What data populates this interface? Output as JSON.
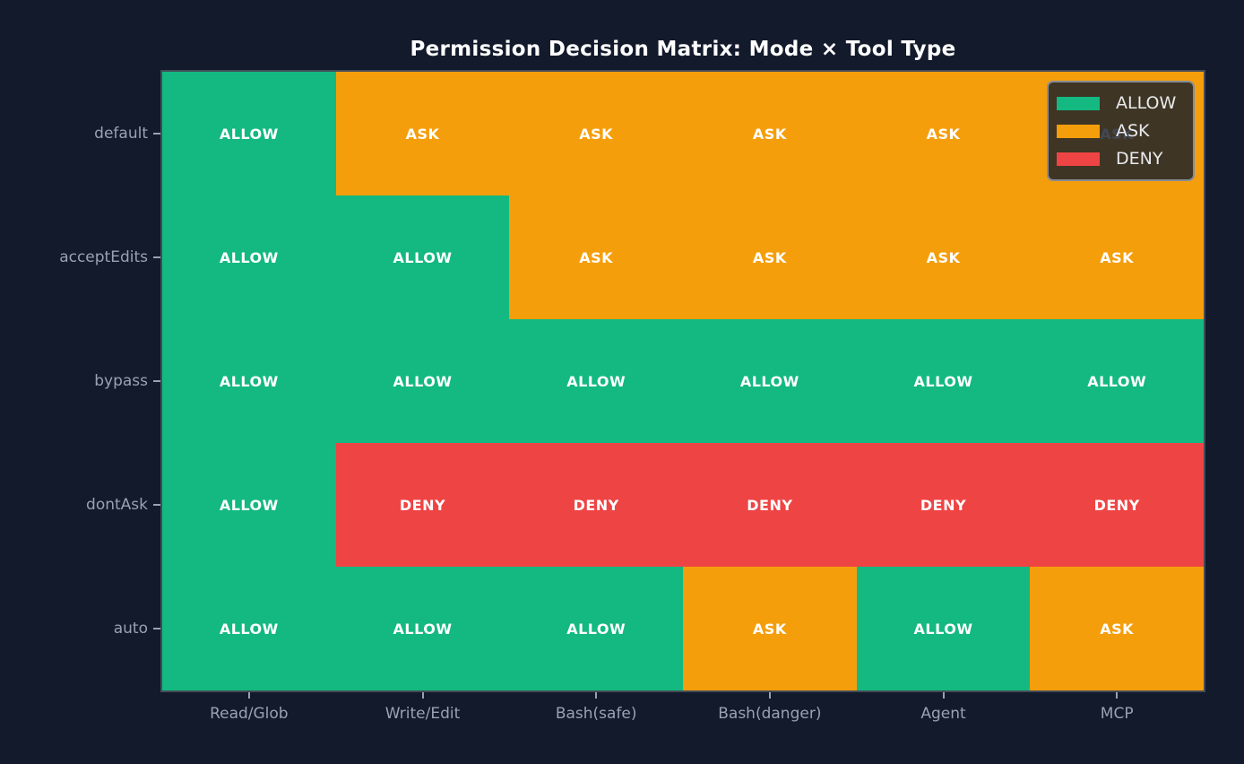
{
  "title": "Permission Decision Matrix: Mode × Tool Type",
  "chart_data": {
    "type": "heatmap",
    "rows": [
      "default",
      "acceptEdits",
      "bypass",
      "dontAsk",
      "auto"
    ],
    "columns": [
      "Read/Glob",
      "Write/Edit",
      "Bash(safe)",
      "Bash(danger)",
      "Agent",
      "MCP"
    ],
    "values": [
      [
        "ALLOW",
        "ASK",
        "ASK",
        "ASK",
        "ASK",
        "ASK"
      ],
      [
        "ALLOW",
        "ALLOW",
        "ASK",
        "ASK",
        "ASK",
        "ASK"
      ],
      [
        "ALLOW",
        "ALLOW",
        "ALLOW",
        "ALLOW",
        "ALLOW",
        "ALLOW"
      ],
      [
        "ALLOW",
        "DENY",
        "DENY",
        "DENY",
        "DENY",
        "DENY"
      ],
      [
        "ALLOW",
        "ALLOW",
        "ALLOW",
        "ASK",
        "ALLOW",
        "ASK"
      ]
    ],
    "legend": [
      {
        "label": "ALLOW",
        "color": "#13b981"
      },
      {
        "label": "ASK",
        "color": "#f59e0b"
      },
      {
        "label": "DENY",
        "color": "#ef4444"
      }
    ],
    "cell_colors": {
      "ALLOW": "#13b981",
      "ASK": "#f59e0b",
      "DENY": "#ef4444"
    },
    "legend_position": "upper right",
    "grid": false
  },
  "colors": {
    "background": "#121a2b",
    "title_text": "#ffffff",
    "cell_text": "#ffffff",
    "axis_text": "#98a2b3",
    "plot_border": "#434b58",
    "legend_border": "#878c95"
  }
}
